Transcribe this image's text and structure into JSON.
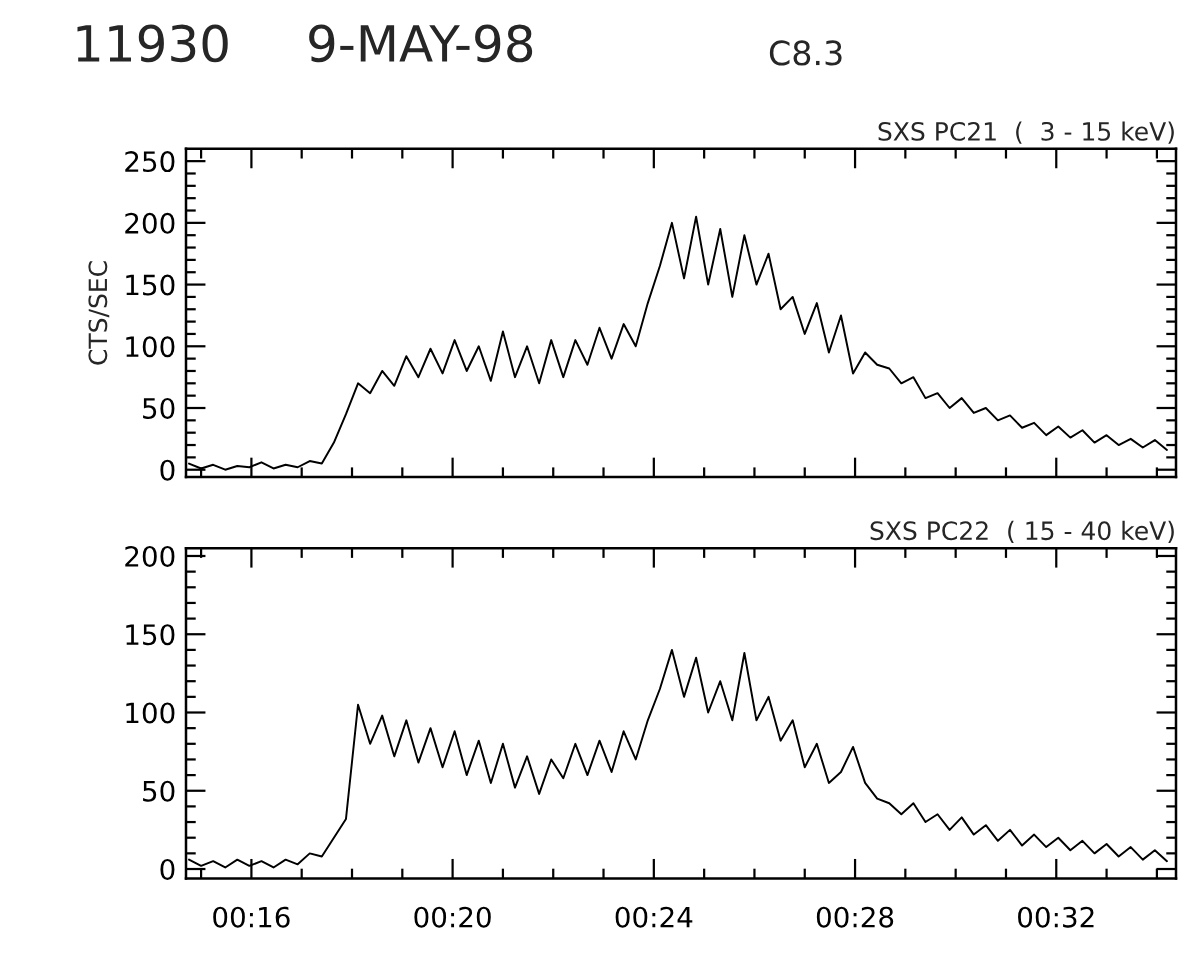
{
  "chart_data": [
    {
      "type": "line",
      "title": "SXS PC21  (  3 - 15 keV)",
      "ylabel": "CTS/SEC",
      "annotations": [
        "11930",
        "9-MAY-98",
        "C8.3"
      ],
      "x": [
        0.246,
        0.25,
        0.254,
        0.258,
        0.262,
        0.266,
        0.27,
        0.274,
        0.278,
        0.282,
        0.286,
        0.29,
        0.294,
        0.298,
        0.302,
        0.306,
        0.31,
        0.314,
        0.318,
        0.322,
        0.326,
        0.33,
        0.334,
        0.338,
        0.342,
        0.346,
        0.35,
        0.354,
        0.358,
        0.362,
        0.366,
        0.37,
        0.374,
        0.378,
        0.382,
        0.386,
        0.39,
        0.394,
        0.398,
        0.402,
        0.406,
        0.41,
        0.414,
        0.418,
        0.422,
        0.426,
        0.43,
        0.434,
        0.438,
        0.442,
        0.446,
        0.45,
        0.454,
        0.458,
        0.462,
        0.466,
        0.47,
        0.474,
        0.478,
        0.482,
        0.486,
        0.49,
        0.494,
        0.498,
        0.502,
        0.506,
        0.51,
        0.514,
        0.518,
        0.522,
        0.526,
        0.53,
        0.534,
        0.538,
        0.542,
        0.546,
        0.55,
        0.554,
        0.558,
        0.562,
        0.566,
        0.57
      ],
      "series": [
        {
          "color": "#000000",
          "values": [
            5,
            1,
            4,
            0,
            3,
            2,
            6,
            1,
            4,
            2,
            7,
            5,
            22,
            45,
            70,
            62,
            80,
            68,
            92,
            75,
            98,
            78,
            105,
            80,
            100,
            72,
            112,
            75,
            100,
            70,
            105,
            75,
            105,
            85,
            115,
            90,
            118,
            100,
            135,
            165,
            200,
            155,
            205,
            150,
            195,
            140,
            190,
            150,
            175,
            130,
            140,
            110,
            135,
            95,
            125,
            78,
            95,
            85,
            82,
            70,
            75,
            58,
            62,
            50,
            58,
            46,
            50,
            40,
            44,
            34,
            38,
            28,
            35,
            26,
            32,
            22,
            28,
            20,
            25,
            18,
            24,
            16
          ]
        }
      ],
      "xlim": [
        0.245,
        0.573
      ],
      "ylim": [
        -6,
        260
      ],
      "xticks": [
        {
          "value": 0.25,
          "label": null
        },
        {
          "value": 0.26667,
          "label": null
        },
        {
          "value": 0.28333,
          "label": null
        },
        {
          "value": 0.3,
          "label": null
        },
        {
          "value": 0.31667,
          "label": null
        },
        {
          "value": 0.33333,
          "label": null
        },
        {
          "value": 0.35,
          "label": null
        },
        {
          "value": 0.36667,
          "label": null
        },
        {
          "value": 0.38333,
          "label": null
        },
        {
          "value": 0.4,
          "label": null
        },
        {
          "value": 0.41667,
          "label": null
        },
        {
          "value": 0.43333,
          "label": null
        },
        {
          "value": 0.45,
          "label": null
        },
        {
          "value": 0.46667,
          "label": null
        },
        {
          "value": 0.48333,
          "label": null
        },
        {
          "value": 0.5,
          "label": null
        },
        {
          "value": 0.51667,
          "label": null
        },
        {
          "value": 0.53333,
          "label": null
        },
        {
          "value": 0.55,
          "label": null
        },
        {
          "value": 0.56667,
          "label": null
        }
      ],
      "yticks": [
        0,
        {
          "value": 10,
          "label": null
        },
        {
          "value": 20,
          "label": null
        },
        {
          "value": 30,
          "label": null
        },
        {
          "value": 40,
          "label": null
        },
        50,
        {
          "value": 60,
          "label": null
        },
        {
          "value": 70,
          "label": null
        },
        {
          "value": 80,
          "label": null
        },
        {
          "value": 90,
          "label": null
        },
        100,
        {
          "value": 110,
          "label": null
        },
        {
          "value": 120,
          "label": null
        },
        {
          "value": 130,
          "label": null
        },
        {
          "value": 140,
          "label": null
        },
        150,
        {
          "value": 160,
          "label": null
        },
        {
          "value": 170,
          "label": null
        },
        {
          "value": 180,
          "label": null
        },
        {
          "value": 190,
          "label": null
        },
        200,
        {
          "value": 210,
          "label": null
        },
        {
          "value": 220,
          "label": null
        },
        {
          "value": 230,
          "label": null
        },
        {
          "value": 240,
          "label": null
        },
        250
      ],
      "tick_labels": "y"
    },
    {
      "type": "line",
      "title": "SXS PC22  ( 15 - 40 keV)",
      "x": [
        0.246,
        0.25,
        0.254,
        0.258,
        0.262,
        0.266,
        0.27,
        0.274,
        0.278,
        0.282,
        0.286,
        0.29,
        0.294,
        0.298,
        0.302,
        0.306,
        0.31,
        0.314,
        0.318,
        0.322,
        0.326,
        0.33,
        0.334,
        0.338,
        0.342,
        0.346,
        0.35,
        0.354,
        0.358,
        0.362,
        0.366,
        0.37,
        0.374,
        0.378,
        0.382,
        0.386,
        0.39,
        0.394,
        0.398,
        0.402,
        0.406,
        0.41,
        0.414,
        0.418,
        0.422,
        0.426,
        0.43,
        0.434,
        0.438,
        0.442,
        0.446,
        0.45,
        0.454,
        0.458,
        0.462,
        0.466,
        0.47,
        0.474,
        0.478,
        0.482,
        0.486,
        0.49,
        0.494,
        0.498,
        0.502,
        0.506,
        0.51,
        0.514,
        0.518,
        0.522,
        0.526,
        0.53,
        0.534,
        0.538,
        0.542,
        0.546,
        0.55,
        0.554,
        0.558,
        0.562,
        0.566,
        0.57
      ],
      "series": [
        {
          "color": "#000000",
          "values": [
            6,
            2,
            5,
            1,
            6,
            2,
            5,
            1,
            6,
            3,
            10,
            8,
            20,
            32,
            105,
            80,
            98,
            72,
            95,
            68,
            90,
            65,
            88,
            60,
            82,
            55,
            80,
            52,
            72,
            48,
            70,
            58,
            80,
            60,
            82,
            62,
            88,
            70,
            95,
            115,
            140,
            110,
            135,
            100,
            120,
            95,
            138,
            95,
            110,
            82,
            95,
            65,
            80,
            55,
            62,
            78,
            55,
            45,
            42,
            35,
            42,
            30,
            35,
            25,
            33,
            22,
            28,
            18,
            25,
            15,
            22,
            14,
            20,
            12,
            18,
            10,
            16,
            8,
            14,
            6,
            12,
            5
          ]
        }
      ],
      "xlim": [
        0.245,
        0.573
      ],
      "ylim": [
        -6,
        205
      ],
      "xticks": [
        {
          "value": 0.25,
          "label": null
        },
        {
          "value": 0.26667,
          "label": "00:16"
        },
        {
          "value": 0.28333,
          "label": null
        },
        {
          "value": 0.3,
          "label": null
        },
        {
          "value": 0.31667,
          "label": null
        },
        {
          "value": 0.33333,
          "label": "00:20"
        },
        {
          "value": 0.35,
          "label": null
        },
        {
          "value": 0.36667,
          "label": null
        },
        {
          "value": 0.38333,
          "label": null
        },
        {
          "value": 0.4,
          "label": "00:24"
        },
        {
          "value": 0.41667,
          "label": null
        },
        {
          "value": 0.43333,
          "label": null
        },
        {
          "value": 0.45,
          "label": null
        },
        {
          "value": 0.46667,
          "label": "00:28"
        },
        {
          "value": 0.48333,
          "label": null
        },
        {
          "value": 0.5,
          "label": null
        },
        {
          "value": 0.51667,
          "label": null
        },
        {
          "value": 0.53333,
          "label": "00:32"
        },
        {
          "value": 0.55,
          "label": null
        },
        {
          "value": 0.56667,
          "label": null
        }
      ],
      "yticks": [
        0,
        {
          "value": 10,
          "label": null
        },
        {
          "value": 20,
          "label": null
        },
        {
          "value": 30,
          "label": null
        },
        {
          "value": 40,
          "label": null
        },
        50,
        {
          "value": 60,
          "label": null
        },
        {
          "value": 70,
          "label": null
        },
        {
          "value": 80,
          "label": null
        },
        {
          "value": 90,
          "label": null
        },
        100,
        {
          "value": 110,
          "label": null
        },
        {
          "value": 120,
          "label": null
        },
        {
          "value": 130,
          "label": null
        },
        {
          "value": 140,
          "label": null
        },
        150,
        {
          "value": 160,
          "label": null
        },
        {
          "value": 170,
          "label": null
        },
        {
          "value": 180,
          "label": null
        },
        {
          "value": 190,
          "label": null
        },
        200
      ]
    }
  ]
}
